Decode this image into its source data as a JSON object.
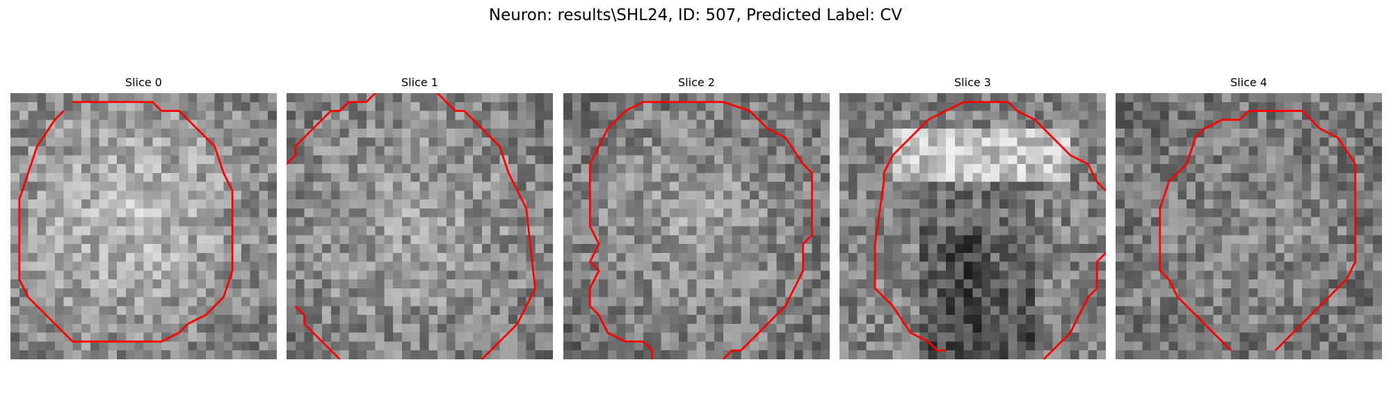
{
  "figure": {
    "title": "Neuron: results\\SHL24, ID: 507, Predicted Label: CV",
    "contour_color": "#ff0000",
    "colormap": "gray"
  },
  "slices": [
    {
      "title": "Slice 0"
    },
    {
      "title": "Slice 1"
    },
    {
      "title": "Slice 2"
    },
    {
      "title": "Slice 3"
    },
    {
      "title": "Slice 4"
    }
  ]
}
